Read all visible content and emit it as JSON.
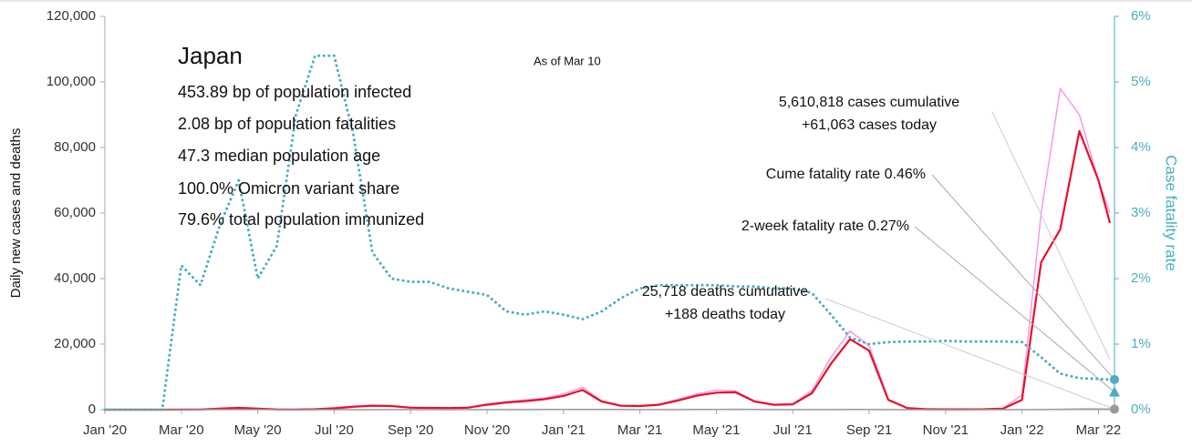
{
  "chart_data": {
    "type": "line",
    "y_label": "Daily new cases and deaths",
    "y2_label": "Case fatality rate",
    "annotations": [
      "Japan",
      "453.89 bp of population infected",
      "2.08 bp of population fatalities",
      "47.3 median population age",
      "100.0% Omicron variant share",
      "79.6% total population immunized",
      "As of Mar 10",
      "5,610,818 cases cumulative",
      "+61,063 cases today",
      "Cume fatality rate 0.46%",
      "2-week fatality rate 0.27%",
      "25,718 deaths cumulative",
      "+188 deaths today"
    ],
    "x": [
      0,
      0.5,
      1,
      1.5,
      2,
      2.5,
      3,
      3.5,
      4,
      4.5,
      5,
      5.5,
      6,
      6.5,
      7,
      7.5,
      8,
      8.5,
      9,
      9.5,
      10,
      10.5,
      11,
      11.5,
      12,
      12.5,
      13,
      13.5,
      14,
      14.5,
      15,
      15.5,
      16,
      16.5,
      17,
      17.5,
      18,
      18.5,
      19,
      19.5,
      20,
      20.5,
      21,
      21.5,
      22,
      22.5,
      23,
      23.5,
      24,
      24.5,
      25,
      25.5,
      26,
      26.3
    ],
    "xlim": [
      0,
      26.3
    ],
    "xticks": [
      {
        "value": 0,
        "label": "Jan '20"
      },
      {
        "value": 2,
        "label": "Mar '20"
      },
      {
        "value": 4,
        "label": "May '20"
      },
      {
        "value": 6,
        "label": "Jul '20"
      },
      {
        "value": 8,
        "label": "Sep '20"
      },
      {
        "value": 10,
        "label": "Nov '20"
      },
      {
        "value": 12,
        "label": "Jan '21"
      },
      {
        "value": 14,
        "label": "Mar '21"
      },
      {
        "value": 16,
        "label": "May '21"
      },
      {
        "value": 18,
        "label": "Jul '21"
      },
      {
        "value": 20,
        "label": "Sep '21"
      },
      {
        "value": 22,
        "label": "Nov '21"
      },
      {
        "value": 24,
        "label": "Jan '22"
      },
      {
        "value": 26,
        "label": "Mar '22"
      }
    ],
    "ylim": [
      0,
      120000
    ],
    "yticks": [
      0,
      {
        "value": 20000,
        "label": "20,000"
      },
      {
        "value": 40000,
        "label": "40,000"
      },
      {
        "value": 60000,
        "label": "60,000"
      },
      {
        "value": 80000,
        "label": "80,000"
      },
      {
        "value": 100000,
        "label": "100,000"
      },
      {
        "value": 120000,
        "label": "120,000"
      }
    ],
    "y2lim": [
      0,
      6
    ],
    "y2ticks": [
      {
        "value": 0,
        "label": "0%"
      },
      {
        "value": 1,
        "label": "1%"
      },
      {
        "value": 2,
        "label": "2%"
      },
      {
        "value": 3,
        "label": "3%"
      },
      {
        "value": 4,
        "label": "4%"
      },
      {
        "value": 5,
        "label": "5%"
      },
      {
        "value": 6,
        "label": "6%"
      }
    ],
    "two_week_fatality_rate": 0.27,
    "cume_fatality_rate": 0.46,
    "series": [
      {
        "color": "#f59be6",
        "width": 1.5,
        "values": [
          0,
          0,
          0,
          20,
          50,
          80,
          400,
          700,
          350,
          100,
          60,
          200,
          600,
          1100,
          1400,
          1200,
          700,
          600,
          550,
          700,
          1800,
          2400,
          3000,
          3500,
          4800,
          6800,
          2700,
          1300,
          1200,
          1700,
          3200,
          4800,
          6000,
          5700,
          2700,
          1600,
          1800,
          5800,
          16000,
          24000,
          19500,
          3200,
          550,
          160,
          110,
          130,
          170,
          350,
          4500,
          60000,
          98000,
          90000,
          70000,
          60000
        ]
      },
      {
        "color": "#e8102a",
        "width": 2.2,
        "values": [
          0,
          0,
          0,
          10,
          30,
          50,
          300,
          550,
          300,
          80,
          50,
          150,
          400,
          900,
          1200,
          1100,
          600,
          550,
          500,
          600,
          1500,
          2200,
          2600,
          3200,
          4200,
          6000,
          2500,
          1200,
          1100,
          1500,
          2800,
          4300,
          5200,
          5300,
          2500,
          1500,
          1600,
          5000,
          14000,
          21500,
          18000,
          3000,
          500,
          150,
          100,
          120,
          150,
          300,
          3000,
          45000,
          55000,
          85000,
          70000,
          57000
        ]
      },
      {
        "color": "#999999",
        "width": 1.5,
        "values": [
          0,
          0,
          0,
          0,
          2,
          5,
          20,
          25,
          15,
          5,
          1,
          1,
          3,
          5,
          12,
          14,
          12,
          8,
          6,
          6,
          12,
          25,
          40,
          50,
          60,
          80,
          70,
          45,
          30,
          25,
          25,
          50,
          90,
          100,
          50,
          20,
          12,
          15,
          30,
          50,
          55,
          25,
          8,
          2,
          1,
          1,
          1,
          2,
          5,
          40,
          110,
          200,
          190,
          180
        ]
      },
      {
        "color": "#4aaec0",
        "width": 3,
        "dotted": true,
        "axis": "y2",
        "values": [
          0,
          0,
          0,
          0,
          2.2,
          1.9,
          2.8,
          3.5,
          2.0,
          2.5,
          4.5,
          5.4,
          5.4,
          4.2,
          2.4,
          2.0,
          1.95,
          1.95,
          1.85,
          1.8,
          1.75,
          1.5,
          1.45,
          1.5,
          1.45,
          1.38,
          1.5,
          1.7,
          1.85,
          1.9,
          1.9,
          1.9,
          1.9,
          1.88,
          1.88,
          1.85,
          1.85,
          1.78,
          1.45,
          1.1,
          1.0,
          1.03,
          1.04,
          1.04,
          1.05,
          1.04,
          1.04,
          1.04,
          1.03,
          0.8,
          0.55,
          0.48,
          0.47,
          0.46
        ]
      }
    ]
  }
}
